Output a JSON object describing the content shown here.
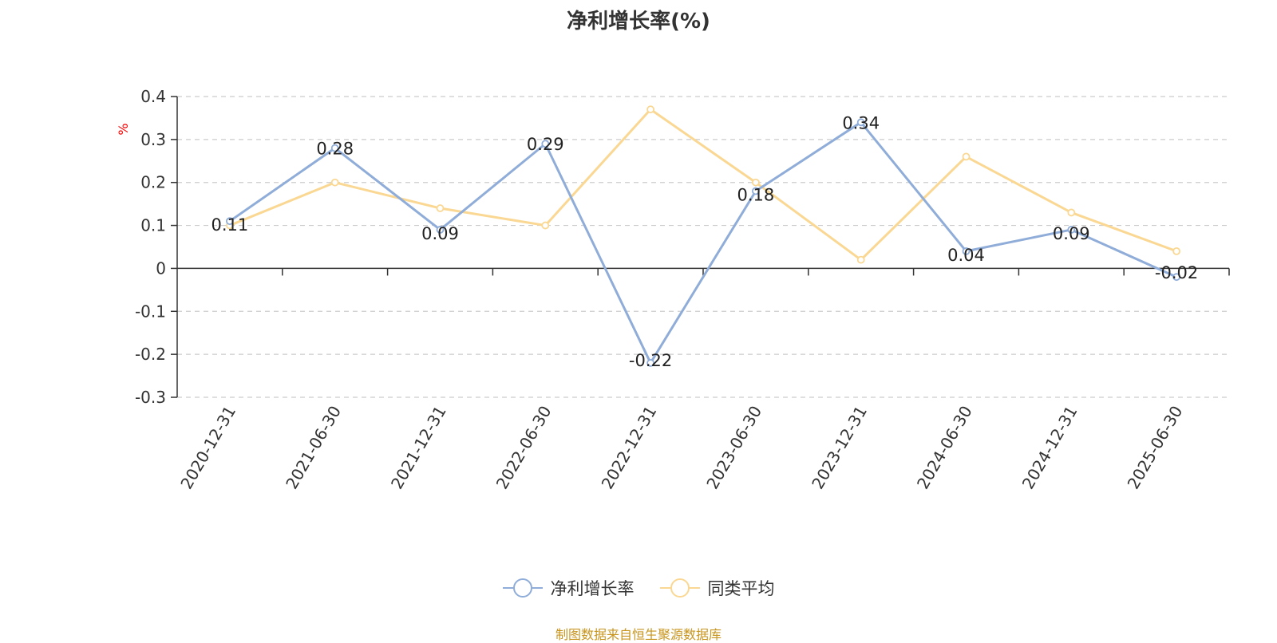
{
  "title": "净利增长率(%)",
  "source_note": "制图数据来自恒生聚源数据库",
  "colors": {
    "series1": "#8fadd8",
    "series2": "#fad893",
    "axis": "#333333",
    "grid": "#cccccc",
    "unit": "#ff0000"
  },
  "chart_data": {
    "type": "line",
    "title": "净利增长率(%)",
    "ylabel": "%",
    "xlabel": "",
    "categories": [
      "2020-12-31",
      "2021-06-30",
      "2021-12-31",
      "2022-06-30",
      "2022-12-31",
      "2023-06-30",
      "2023-12-31",
      "2024-06-30",
      "2024-12-31",
      "2025-06-30"
    ],
    "ylim": [
      -0.3,
      0.4
    ],
    "yticks": [
      "0.4",
      "0.3",
      "0.2",
      "0.1",
      "0",
      "-0.1",
      "-0.2",
      "-0.3"
    ],
    "grid": true,
    "legend_position": "bottom",
    "series": [
      {
        "name": "净利增长率",
        "values": [
          0.11,
          0.28,
          0.09,
          0.29,
          -0.22,
          0.18,
          0.34,
          0.04,
          0.09,
          -0.02
        ],
        "labels": [
          "0.11",
          "0.28",
          "0.09",
          "0.29",
          "-0.22",
          "0.18",
          "0.34",
          "0.04",
          "0.09",
          "-0.02"
        ]
      },
      {
        "name": "同类平均",
        "values": [
          0.1,
          0.2,
          0.14,
          0.1,
          0.37,
          0.2,
          0.02,
          0.26,
          0.13,
          0.04
        ]
      }
    ]
  }
}
